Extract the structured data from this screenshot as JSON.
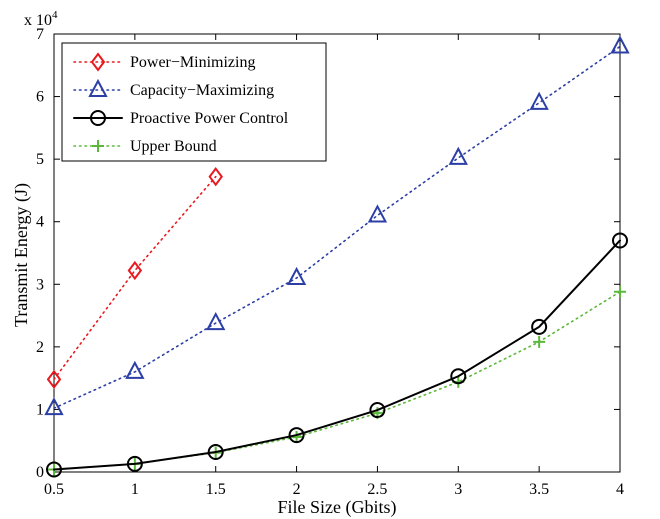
{
  "chart_data": {
    "type": "line",
    "xlabel": "File Size (Gbits)",
    "ylabel": "Transmit Energy (J)",
    "y_multiplier_label": "x 10",
    "y_multiplier_exponent": "4",
    "xlim": [
      0.5,
      4
    ],
    "ylim": [
      0,
      70000
    ],
    "x_ticks": [
      "0.5",
      "1",
      "1.5",
      "2",
      "2.5",
      "3",
      "3.5",
      "4"
    ],
    "x_tick_values": [
      0.5,
      1,
      1.5,
      2,
      2.5,
      3,
      3.5,
      4
    ],
    "y_ticks": [
      "0",
      "1",
      "2",
      "3",
      "4",
      "5",
      "6",
      "7"
    ],
    "y_tick_values": [
      0,
      10000,
      20000,
      30000,
      40000,
      50000,
      60000,
      70000
    ],
    "grid": false,
    "legend_position": "top-left",
    "series": [
      {
        "name": "Power−Minimizing",
        "color": "#e8191f",
        "line": "dotted",
        "marker": "diamond",
        "x": [
          0.5,
          1,
          1.5
        ],
        "y": [
          14800,
          32200,
          47200
        ]
      },
      {
        "name": "Capacity−Maximizing",
        "color": "#2b3fa6",
        "line": "dotted",
        "marker": "triangle",
        "x": [
          0.5,
          1,
          1.5,
          2,
          2.5,
          3,
          3.5,
          4
        ],
        "y": [
          10200,
          16000,
          23800,
          31000,
          41000,
          50200,
          59000,
          68000
        ]
      },
      {
        "name": "Proactive Power Control",
        "color": "#000000",
        "line": "solid",
        "marker": "circle",
        "x": [
          0.5,
          1,
          1.5,
          2,
          2.5,
          3,
          3.5,
          4
        ],
        "y": [
          400,
          1300,
          3200,
          5900,
          9900,
          15300,
          23200,
          37000
        ]
      },
      {
        "name": "Upper Bound",
        "color": "#5cb83a",
        "line": "dotted",
        "marker": "plus",
        "x": [
          0.5,
          1,
          1.5,
          2,
          2.5,
          3,
          3.5,
          4
        ],
        "y": [
          400,
          1300,
          3100,
          5600,
          9400,
          14400,
          20800,
          28800
        ]
      }
    ]
  }
}
